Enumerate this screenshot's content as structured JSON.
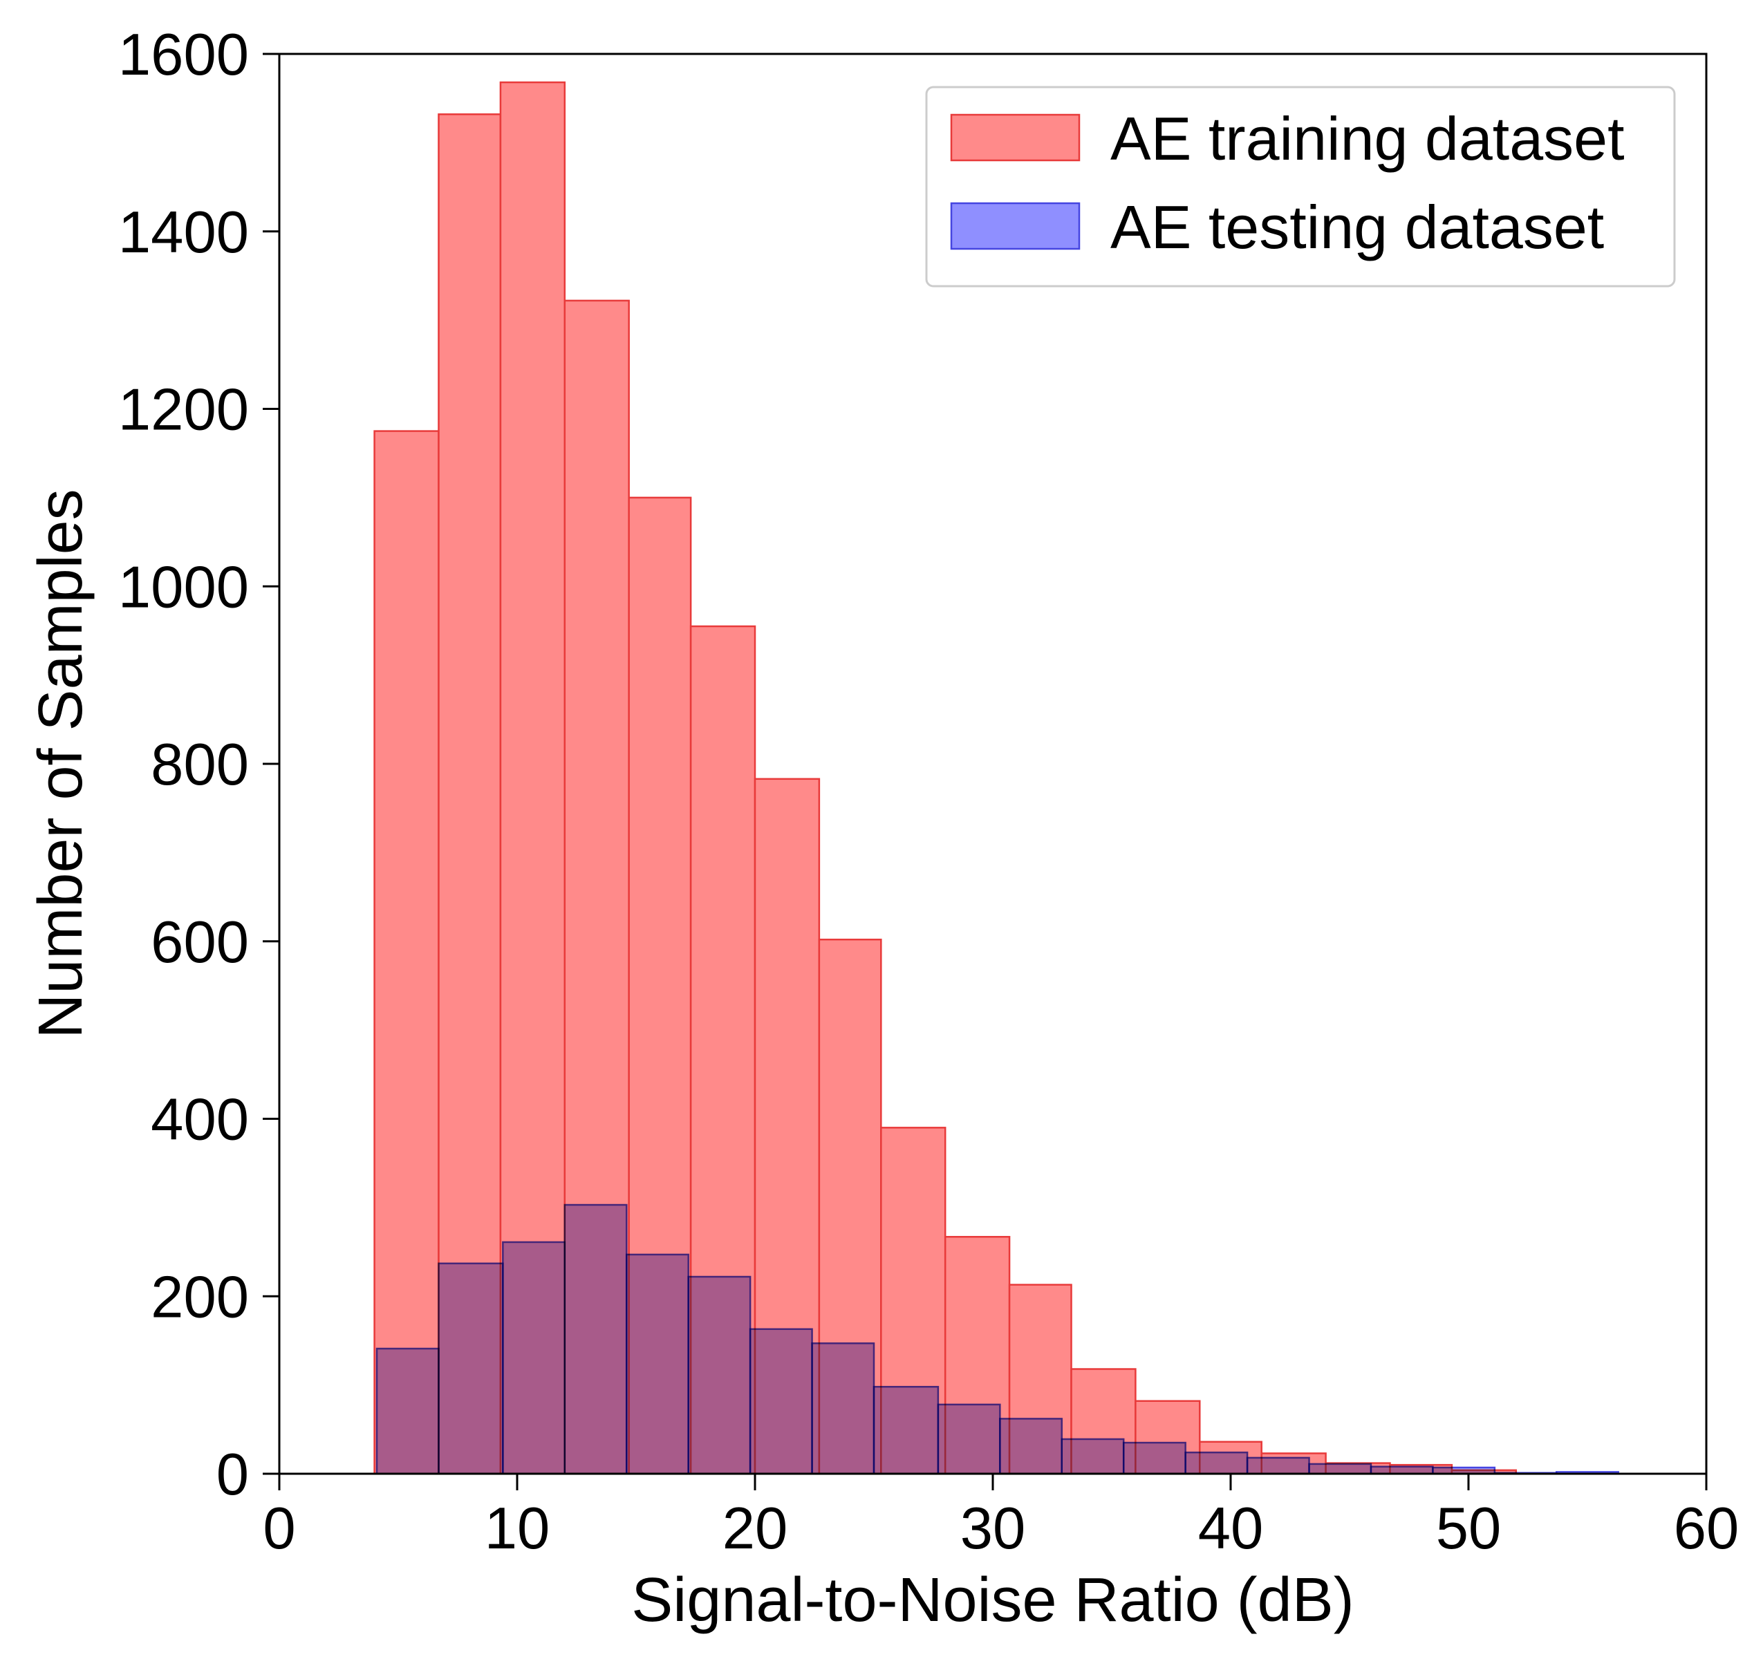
{
  "chart_data": {
    "type": "bar",
    "subtype": "histogram",
    "title": "",
    "xlabel": "Signal-to-Noise Ratio (dB)",
    "ylabel": "Number of Samples",
    "xlim": [
      0,
      60
    ],
    "ylim": [
      0,
      1600
    ],
    "xticks": [
      0,
      10,
      20,
      30,
      40,
      50,
      60
    ],
    "yticks": [
      0,
      200,
      400,
      600,
      800,
      1000,
      1200,
      1400,
      1600
    ],
    "grid": false,
    "legend_position": "top-right",
    "series": [
      {
        "name": "AE training dataset",
        "color": "#ff8a8a",
        "edge_color": "#e83a3a",
        "bins": [
          {
            "x0": 4.0,
            "x1": 6.7,
            "count": 1175
          },
          {
            "x0": 6.7,
            "x1": 9.3,
            "count": 1532
          },
          {
            "x0": 9.3,
            "x1": 12.0,
            "count": 1568
          },
          {
            "x0": 12.0,
            "x1": 14.7,
            "count": 1322
          },
          {
            "x0": 14.7,
            "x1": 17.3,
            "count": 1100
          },
          {
            "x0": 17.3,
            "x1": 20.0,
            "count": 955
          },
          {
            "x0": 20.0,
            "x1": 22.7,
            "count": 783
          },
          {
            "x0": 22.7,
            "x1": 25.3,
            "count": 602
          },
          {
            "x0": 25.3,
            "x1": 28.0,
            "count": 390
          },
          {
            "x0": 28.0,
            "x1": 30.7,
            "count": 267
          },
          {
            "x0": 30.7,
            "x1": 33.3,
            "count": 213
          },
          {
            "x0": 33.3,
            "x1": 36.0,
            "count": 118
          },
          {
            "x0": 36.0,
            "x1": 38.7,
            "count": 82
          },
          {
            "x0": 38.7,
            "x1": 41.3,
            "count": 36
          },
          {
            "x0": 41.3,
            "x1": 44.0,
            "count": 23
          },
          {
            "x0": 44.0,
            "x1": 46.7,
            "count": 12
          },
          {
            "x0": 46.7,
            "x1": 49.3,
            "count": 10
          },
          {
            "x0": 49.3,
            "x1": 52.0,
            "count": 4
          }
        ]
      },
      {
        "name": "AE testing dataset",
        "color": "#8f8fff",
        "edge_color": "#4545e0",
        "bins": [
          {
            "x0": 4.1,
            "x1": 6.7,
            "count": 141
          },
          {
            "x0": 6.7,
            "x1": 9.4,
            "count": 237
          },
          {
            "x0": 9.4,
            "x1": 12.0,
            "count": 261
          },
          {
            "x0": 12.0,
            "x1": 14.6,
            "count": 303
          },
          {
            "x0": 14.6,
            "x1": 17.2,
            "count": 247
          },
          {
            "x0": 17.2,
            "x1": 19.8,
            "count": 222
          },
          {
            "x0": 19.8,
            "x1": 22.4,
            "count": 163
          },
          {
            "x0": 22.4,
            "x1": 25.0,
            "count": 147
          },
          {
            "x0": 25.0,
            "x1": 27.7,
            "count": 98
          },
          {
            "x0": 27.7,
            "x1": 30.3,
            "count": 78
          },
          {
            "x0": 30.3,
            "x1": 32.9,
            "count": 62
          },
          {
            "x0": 32.9,
            "x1": 35.5,
            "count": 39
          },
          {
            "x0": 35.5,
            "x1": 38.1,
            "count": 35
          },
          {
            "x0": 38.1,
            "x1": 40.7,
            "count": 24
          },
          {
            "x0": 40.7,
            "x1": 43.3,
            "count": 18
          },
          {
            "x0": 43.3,
            "x1": 45.9,
            "count": 11
          },
          {
            "x0": 45.9,
            "x1": 48.5,
            "count": 8
          },
          {
            "x0": 48.5,
            "x1": 51.1,
            "count": 7
          },
          {
            "x0": 51.1,
            "x1": 53.7,
            "count": 1
          },
          {
            "x0": 53.7,
            "x1": 56.3,
            "count": 2
          }
        ]
      }
    ]
  }
}
